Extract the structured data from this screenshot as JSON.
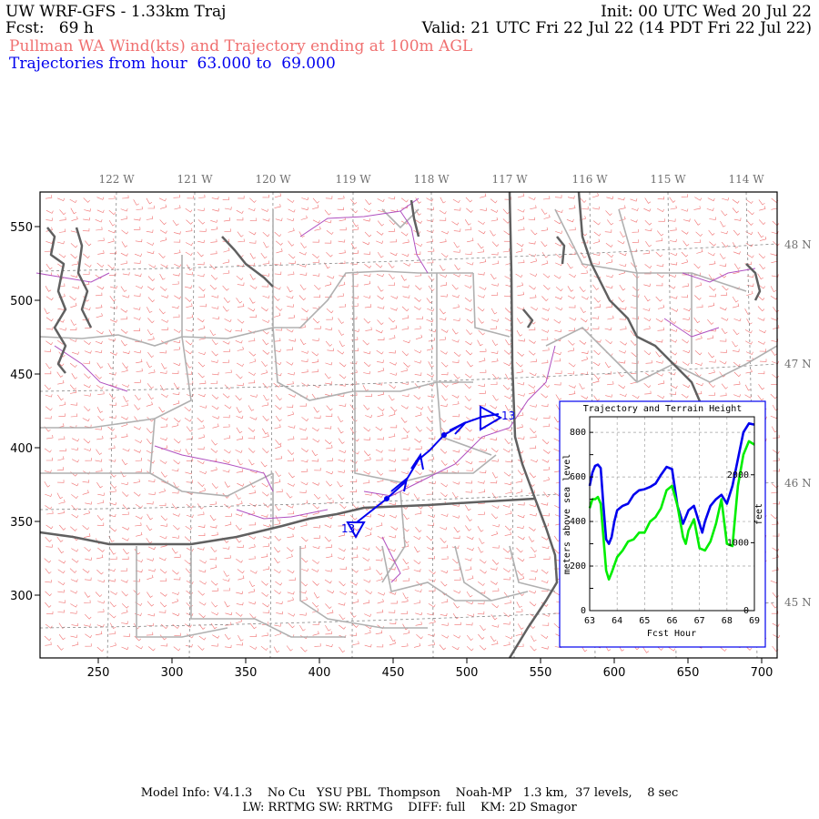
{
  "header": {
    "title": "UW WRF-GFS - 1.33km Traj",
    "init": "Init: 00 UTC Wed 20 Jul 22",
    "fcst": "Fcst:   69 h",
    "valid": "Valid: 21 UTC Fri 22 Jul 22 (14 PDT Fri 22 Jul 22)",
    "subtitle": "Pullman WA Wind(kts) and Trajectory ending at 100m AGL",
    "traj_range": "Trajectories from hour  63.000 to  69.000"
  },
  "colors": {
    "wind_barbs": "#f07070",
    "trajectory": "#0000ee",
    "terrain": "#00ee00",
    "state_border": "#606060",
    "county_border": "#b0b0b0",
    "water_border": "#b050c0"
  },
  "map": {
    "x_ticks": [
      "250",
      "300",
      "350",
      "400",
      "450",
      "500",
      "550",
      "600",
      "650",
      "700"
    ],
    "y_ticks": [
      "550",
      "500",
      "450",
      "400",
      "350",
      "300"
    ],
    "lon_labels": [
      "122 W",
      "121 W",
      "120 W",
      "119 W",
      "118 W",
      "117 W",
      "116 W",
      "115 W",
      "114 W"
    ],
    "lat_labels": [
      "48 N",
      "47 N",
      "46 N",
      "45 N"
    ],
    "trajectory_hour_labels": [
      "13",
      "13"
    ]
  },
  "chart_data": {
    "type": "line",
    "title": "Trajectory and Terrain Height",
    "xlabel": "Fcst Hour",
    "ylabel": "meters above sea level",
    "ylabel_right": "feet",
    "xlim": [
      63,
      69
    ],
    "ylim": [
      0,
      870
    ],
    "x_ticks": [
      "63",
      "64",
      "65",
      "66",
      "67",
      "68",
      "69"
    ],
    "y_ticks": [
      "0",
      "100",
      "200",
      "300",
      "400",
      "500",
      "600",
      "700",
      "800"
    ],
    "y_ticks_right": [
      "0",
      "1000",
      "2000"
    ],
    "series": [
      {
        "color": "#0000ee",
        "x": [
          63.0,
          63.1,
          63.2,
          63.3,
          63.4,
          63.5,
          63.6,
          63.7,
          63.8,
          63.9,
          64.0,
          64.2,
          64.4,
          64.6,
          64.8,
          65.0,
          65.2,
          65.4,
          65.6,
          65.8,
          66.0,
          66.2,
          66.4,
          66.5,
          66.6,
          66.8,
          67.0,
          67.1,
          67.2,
          67.4,
          67.6,
          67.8,
          68.0,
          68.2,
          68.4,
          68.6,
          68.8,
          69.0
        ],
        "y": [
          560,
          620,
          650,
          655,
          640,
          470,
          320,
          300,
          330,
          400,
          450,
          470,
          480,
          520,
          540,
          545,
          555,
          570,
          610,
          645,
          635,
          470,
          390,
          420,
          450,
          470,
          390,
          350,
          400,
          470,
          500,
          520,
          480,
          560,
          680,
          800,
          840,
          835
        ]
      },
      {
        "color": "#00ee00",
        "x": [
          63.0,
          63.1,
          63.2,
          63.3,
          63.4,
          63.5,
          63.6,
          63.7,
          63.8,
          64.0,
          64.2,
          64.4,
          64.6,
          64.8,
          65.0,
          65.2,
          65.4,
          65.6,
          65.8,
          66.0,
          66.2,
          66.4,
          66.5,
          66.6,
          66.8,
          67.0,
          67.2,
          67.4,
          67.6,
          67.8,
          68.0,
          68.2,
          68.4,
          68.6,
          68.8,
          69.0
        ],
        "y": [
          460,
          500,
          500,
          510,
          480,
          330,
          180,
          140,
          170,
          240,
          270,
          310,
          320,
          350,
          350,
          400,
          420,
          460,
          540,
          560,
          470,
          330,
          300,
          360,
          410,
          280,
          270,
          310,
          390,
          500,
          300,
          290,
          560,
          700,
          760,
          745
        ]
      }
    ]
  },
  "footer": {
    "line1": "Model Info: V4.1.3    No Cu   YSU PBL  Thompson    Noah-MP   1.3 km,  37 levels,    8 sec",
    "line2": "LW: RRTMG SW: RRTMG    DIFF: full    KM: 2D Smagor"
  }
}
